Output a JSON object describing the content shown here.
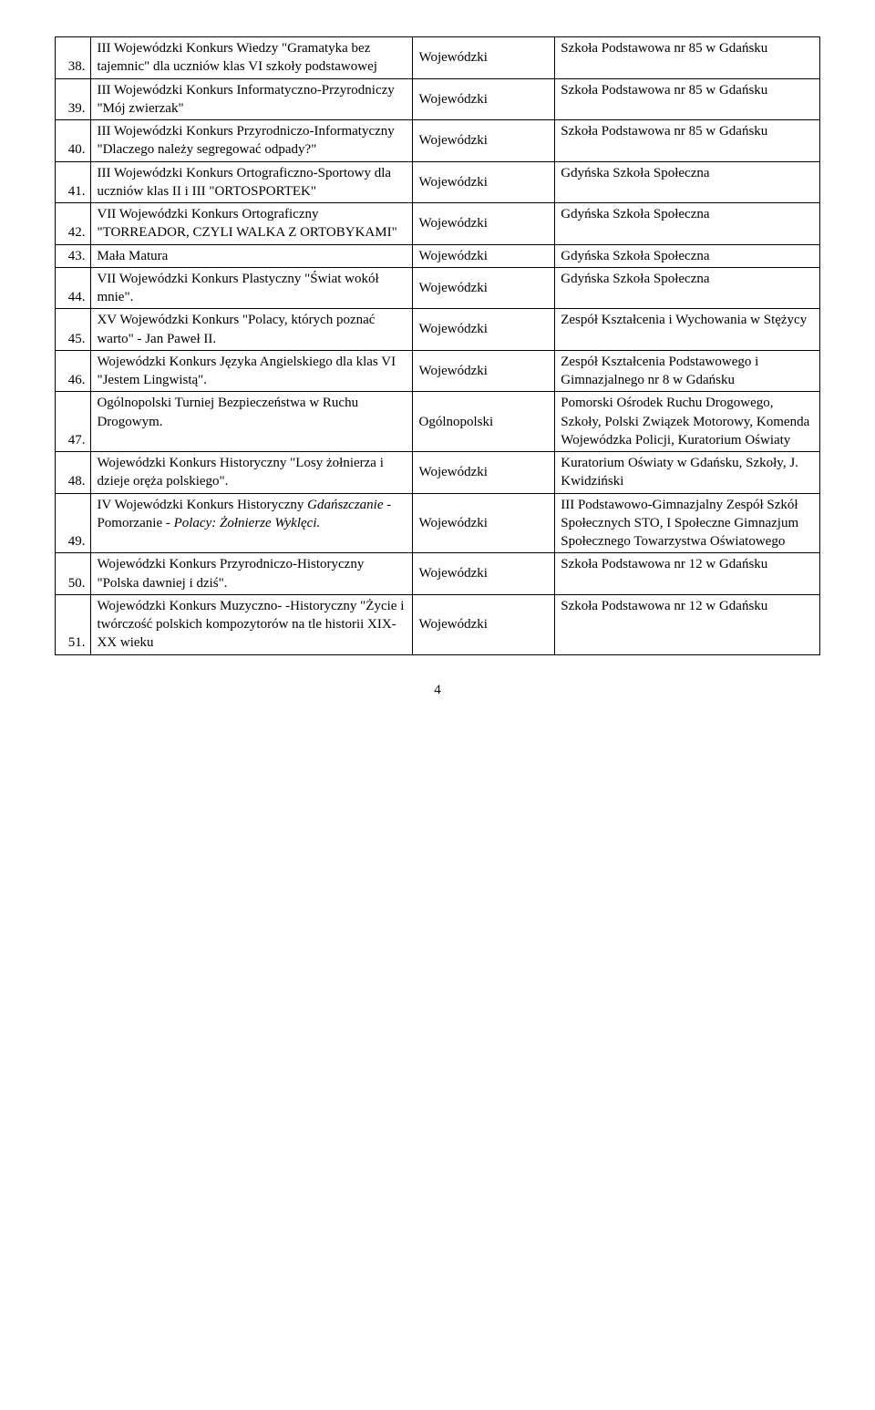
{
  "page_number": "4",
  "rows": [
    {
      "num": "38.",
      "desc": "III Wojewódzki Konkurs Wiedzy \"Gramatyka bez tajemnic\" dla uczniów klas VI szkoły podstawowej",
      "scope": "Wojewódzki",
      "org": "Szkoła Podstawowa nr 85 w Gdańsku"
    },
    {
      "num": "39.",
      "desc": "III Wojewódzki Konkurs Informatyczno-Przyrodniczy \"Mój zwierzak\"",
      "scope": "Wojewódzki",
      "org": "Szkoła Podstawowa nr 85 w Gdańsku"
    },
    {
      "num": "40.",
      "desc": "III Wojewódzki Konkurs Przyrodniczo-Informatyczny \"Dlaczego należy segregować odpady?\"",
      "scope": "Wojewódzki",
      "org": "Szkoła Podstawowa nr 85 w Gdańsku"
    },
    {
      "num": "41.",
      "desc": "III Wojewódzki Konkurs Ortograficzno-Sportowy dla uczniów klas II i III \"ORTOSPORTEK\"",
      "scope": "Wojewódzki",
      "org": "Gdyńska Szkoła Społeczna"
    },
    {
      "num": "42.",
      "desc": "VII Wojewódzki Konkurs Ortograficzny \"TORREADOR, CZYLI WALKA Z ORTOBYKAMI\"",
      "scope": "Wojewódzki",
      "org": "Gdyńska Szkoła Społeczna"
    },
    {
      "num": "43.",
      "desc": "Mała Matura",
      "scope": "Wojewódzki",
      "org": "Gdyńska Szkoła Społeczna"
    },
    {
      "num": "44.",
      "desc": "VII Wojewódzki Konkurs Plastyczny \"Świat wokół mnie\".",
      "scope": "Wojewódzki",
      "org": "Gdyńska Szkoła Społeczna"
    },
    {
      "num": "45.",
      "desc": "XV Wojewódzki Konkurs \"Polacy, których poznać warto\" - Jan Paweł II.",
      "scope": "Wojewódzki",
      "org": "Zespół Kształcenia i Wychowania w Stężycy"
    },
    {
      "num": "46.",
      "desc": "Wojewódzki Konkurs Języka Angielskiego dla klas VI \"Jestem Lingwistą\".",
      "scope": "Wojewódzki",
      "org": "Zespół Kształcenia Podstawowego i Gimnazjalnego nr 8 w Gdańsku"
    },
    {
      "num": "47.",
      "desc": "Ogólnopolski Turniej Bezpieczeństwa w Ruchu Drogowym.",
      "scope": "Ogólnopolski",
      "org": "Pomorski Ośrodek Ruchu Drogowego, Szkoły, Polski Związek Motorowy, Komenda Wojewódzka Policji, Kuratorium Oświaty"
    },
    {
      "num": "48.",
      "desc": "Wojewódzki Konkurs Historyczny \"Losy żołnierza i dzieje oręża polskiego\".",
      "scope": "Wojewódzki",
      "org": "Kuratorium Oświaty w Gdańsku, Szkoły, J. Kwidziński"
    },
    {
      "num": "49.",
      "desc": "IV Wojewódzki Konkurs Historyczny <i>Gdańszczanie</i> - Pomorzanie - <i>Polacy: Żołnierze Wyklęci.</i>",
      "scope": "Wojewódzki",
      "org": "III Podstawowo-Gimnazjalny Zespół Szkół Społecznych STO, I Społeczne Gimnazjum Społecznego Towarzystwa Oświatowego"
    },
    {
      "num": "50.",
      "desc": "Wojewódzki Konkurs Przyrodniczo-Historyczny \"Polska dawniej i dziś\".",
      "scope": "Wojewódzki",
      "org": "Szkoła Podstawowa nr 12 w Gdańsku"
    },
    {
      "num": "51.",
      "desc": "Wojewódzki Konkurs Muzyczno- -Historyczny \"Życie i twórczość polskich kompozytorów na tle historii XIX-XX wieku",
      "scope": "Wojewódzki",
      "org": "Szkoła Podstawowa nr 12 w Gdańsku"
    }
  ]
}
